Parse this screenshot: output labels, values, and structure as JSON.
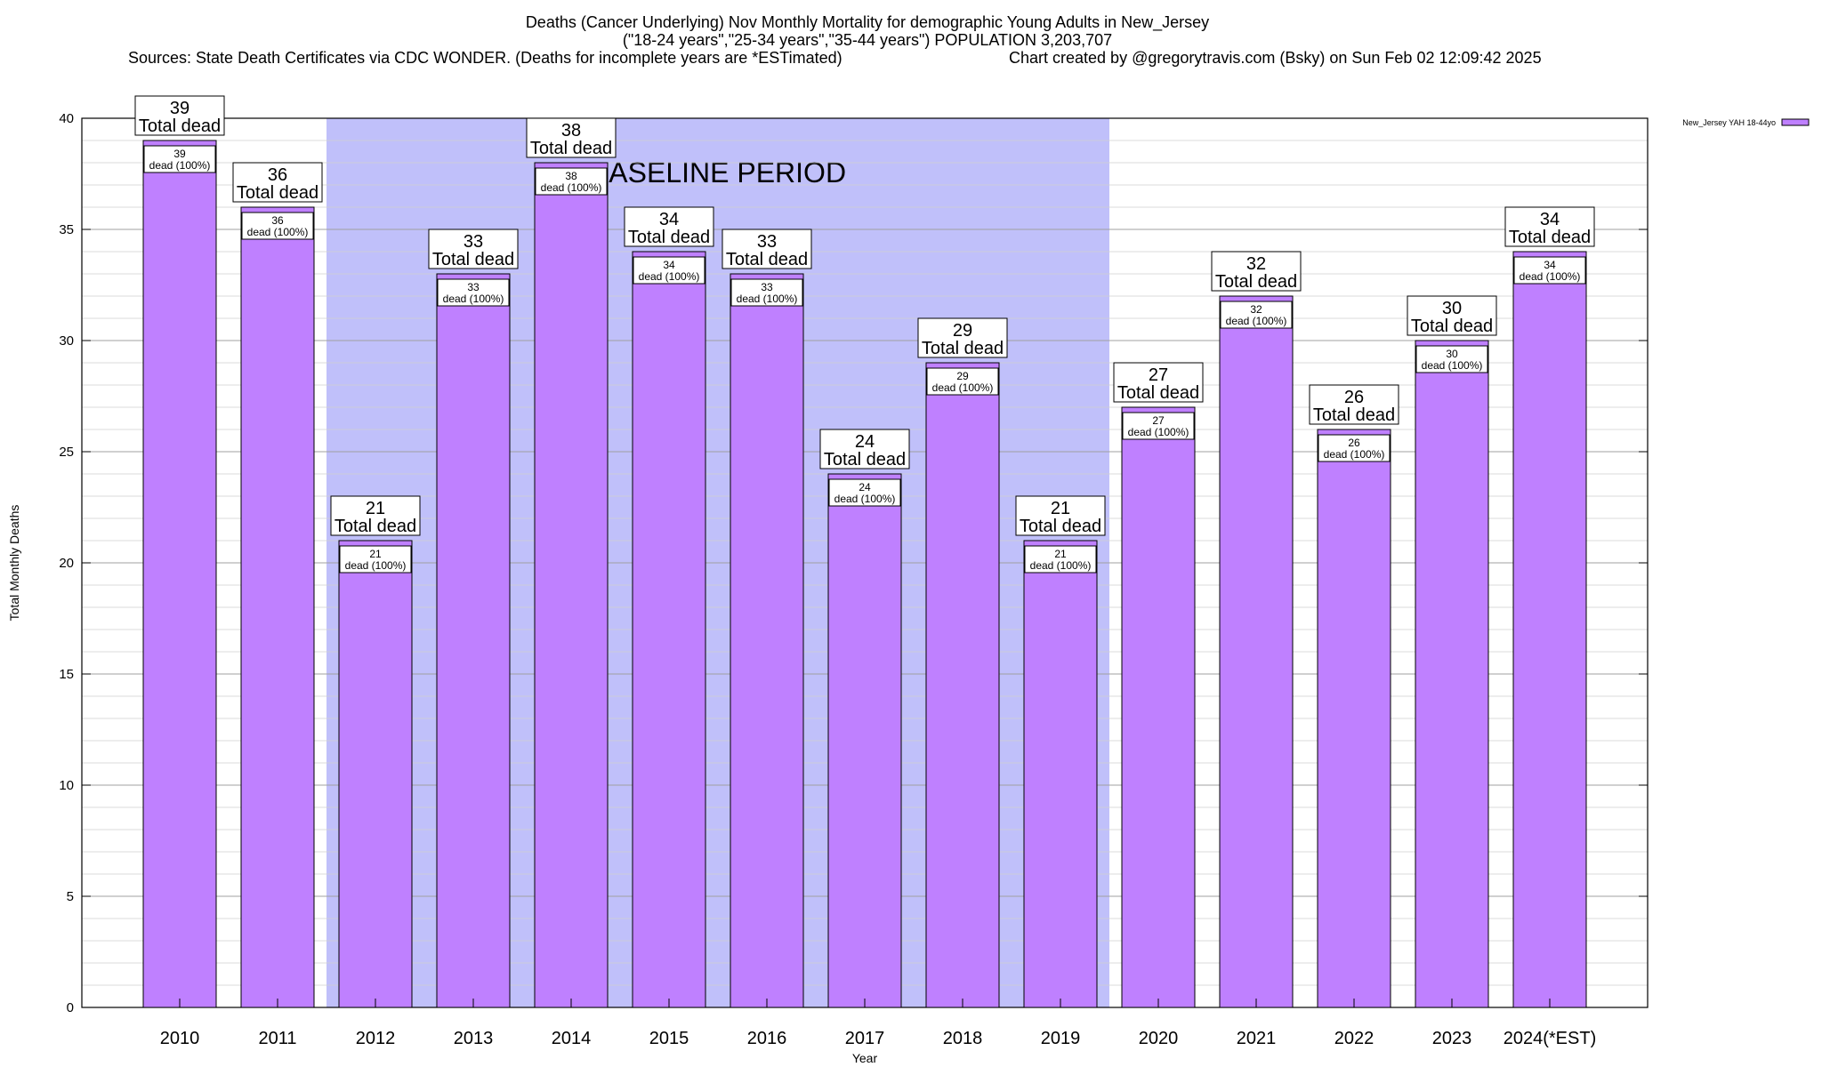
{
  "header": {
    "line1": "Deaths (Cancer Underlying) Nov Monthly Mortality for demographic Young Adults in New_Jersey",
    "line2": "(\"18-24 years\",\"25-34 years\",\"35-44 years\") POPULATION 3,203,707",
    "line3_left": "Sources: State Death Certificates via CDC WONDER. (Deaths for incomplete years are *ESTimated)",
    "line3_right": "Chart created by @gregorytravis.com (Bsky) on Sun Feb 02 12:09:42 2025"
  },
  "chart_data": {
    "type": "bar",
    "categories": [
      "2010",
      "2011",
      "2012",
      "2013",
      "2014",
      "2015",
      "2016",
      "2017",
      "2018",
      "2019",
      "2020",
      "2021",
      "2022",
      "2023",
      "2024(*EST)"
    ],
    "series": [
      {
        "name": "New_Jersey YAH 18-44yo",
        "values": [
          39,
          36,
          21,
          33,
          38,
          34,
          33,
          24,
          29,
          21,
          27,
          32,
          26,
          30,
          34
        ],
        "color": "#bf80ff"
      }
    ],
    "xlabel": "Year",
    "ylabel": "Total Monthly Deaths",
    "ylim": [
      0,
      40
    ],
    "yticks": [
      0,
      5,
      10,
      15,
      20,
      25,
      30,
      35,
      40
    ],
    "minor_grid_step": 1,
    "grid": true,
    "legend_position": "top-right",
    "total_label_text": "Total dead",
    "inner_label_text": "dead (100%)",
    "baseline_band": {
      "label": "BASELINE PERIOD",
      "from_category": "2012",
      "to_category": "2019",
      "color": "#c0c0fa"
    }
  }
}
